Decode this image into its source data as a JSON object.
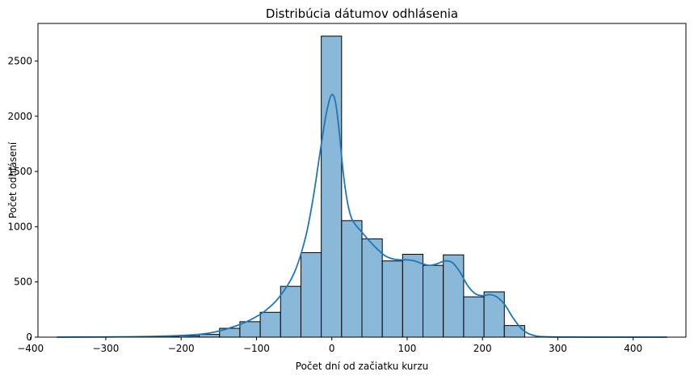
{
  "chart_data": {
    "type": "bar",
    "title": "Distribúcia dátumov odhlásenia",
    "xlabel": "Počet dní od začiatku kurzu",
    "ylabel": "Počet odhlásení",
    "xlim": [
      -390,
      470
    ],
    "ylim": [
      0,
      2840
    ],
    "xticks": [
      -400,
      -300,
      -200,
      -100,
      0,
      100,
      200,
      300,
      400
    ],
    "yticks": [
      0,
      500,
      1000,
      1500,
      2000,
      2500
    ],
    "grid": false,
    "bins": [
      {
        "x0": -365,
        "x1": -338,
        "count": 0
      },
      {
        "x0": -338,
        "x1": -311,
        "count": 0
      },
      {
        "x0": -311,
        "x1": -284,
        "count": 0
      },
      {
        "x0": -284,
        "x1": -257,
        "count": 2
      },
      {
        "x0": -257,
        "x1": -230,
        "count": 3
      },
      {
        "x0": -230,
        "x1": -203,
        "count": 5
      },
      {
        "x0": -203,
        "x1": -176,
        "count": 12
      },
      {
        "x0": -176,
        "x1": -149,
        "count": 25
      },
      {
        "x0": -149,
        "x1": -122,
        "count": 80
      },
      {
        "x0": -122,
        "x1": -95,
        "count": 140
      },
      {
        "x0": -95,
        "x1": -68,
        "count": 225
      },
      {
        "x0": -68,
        "x1": -41,
        "count": 460
      },
      {
        "x0": -41,
        "x1": -14,
        "count": 765
      },
      {
        "x0": -14,
        "x1": 13,
        "count": 2725
      },
      {
        "x0": 13,
        "x1": 40,
        "count": 1055
      },
      {
        "x0": 40,
        "x1": 67,
        "count": 890
      },
      {
        "x0": 67,
        "x1": 94,
        "count": 690
      },
      {
        "x0": 94,
        "x1": 121,
        "count": 750
      },
      {
        "x0": 121,
        "x1": 148,
        "count": 650
      },
      {
        "x0": 148,
        "x1": 175,
        "count": 745
      },
      {
        "x0": 175,
        "x1": 202,
        "count": 365
      },
      {
        "x0": 202,
        "x1": 229,
        "count": 410
      },
      {
        "x0": 229,
        "x1": 256,
        "count": 105
      },
      {
        "x0": 256,
        "x1": 283,
        "count": 0
      },
      {
        "x0": 283,
        "x1": 310,
        "count": 0
      },
      {
        "x0": 310,
        "x1": 337,
        "count": 0
      },
      {
        "x0": 337,
        "x1": 364,
        "count": 0
      },
      {
        "x0": 364,
        "x1": 391,
        "count": 0
      },
      {
        "x0": 391,
        "x1": 418,
        "count": 0
      },
      {
        "x0": 418,
        "x1": 445,
        "count": 0
      }
    ],
    "kde": {
      "x": [
        -365,
        -300,
        -250,
        -200,
        -170,
        -150,
        -130,
        -110,
        -90,
        -70,
        -50,
        -35,
        -25,
        -15,
        -8,
        -3,
        0,
        3,
        6,
        10,
        15,
        20,
        25,
        30,
        40,
        50,
        60,
        70,
        80,
        90,
        100,
        110,
        120,
        130,
        140,
        150,
        160,
        170,
        180,
        190,
        200,
        210,
        220,
        230,
        240,
        250,
        260,
        270,
        280,
        300,
        350,
        445
      ],
      "y": [
        0,
        2,
        5,
        15,
        30,
        55,
        95,
        150,
        230,
        360,
        580,
        900,
        1250,
        1700,
        2000,
        2150,
        2195,
        2175,
        2080,
        1850,
        1500,
        1250,
        1100,
        1030,
        950,
        870,
        800,
        740,
        710,
        700,
        700,
        690,
        665,
        650,
        665,
        690,
        675,
        590,
        470,
        395,
        375,
        385,
        360,
        290,
        180,
        90,
        35,
        12,
        4,
        1,
        0,
        0
      ]
    },
    "colors": {
      "bar_fill": "#89b8d9",
      "bar_edge": "#000000",
      "kde_line": "#1f77b4"
    }
  }
}
